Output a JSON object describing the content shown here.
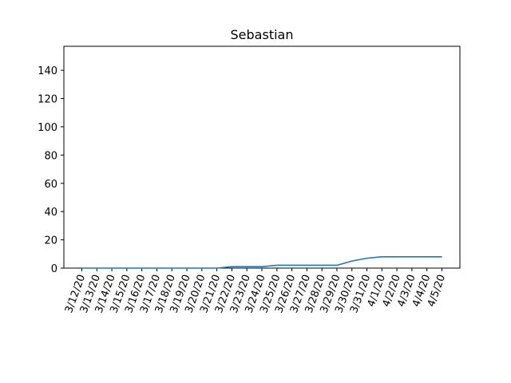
{
  "chart_data": {
    "type": "line",
    "title": "Sebastian",
    "xlabel": "",
    "ylabel": "",
    "categories": [
      "3/12/20",
      "3/13/20",
      "3/14/20",
      "3/15/20",
      "3/16/20",
      "3/17/20",
      "3/18/20",
      "3/19/20",
      "3/20/20",
      "3/21/20",
      "3/22/20",
      "3/23/20",
      "3/24/20",
      "3/25/20",
      "3/26/20",
      "3/27/20",
      "3/28/20",
      "3/29/20",
      "3/30/20",
      "3/31/20",
      "4/1/20",
      "4/2/20",
      "4/3/20",
      "4/4/20",
      "4/5/20"
    ],
    "series": [
      {
        "values": [
          0,
          0,
          0,
          0,
          0,
          0,
          0,
          0,
          0,
          0,
          1,
          1,
          1,
          2,
          2,
          2,
          2,
          2,
          5,
          7,
          8,
          8,
          8,
          8,
          8
        ],
        "color": "#1f77b4"
      }
    ],
    "ylim": [
      0,
      157
    ],
    "yticks": [
      0,
      20,
      40,
      60,
      80,
      100,
      120,
      140
    ],
    "grid": false,
    "legend": "none"
  }
}
